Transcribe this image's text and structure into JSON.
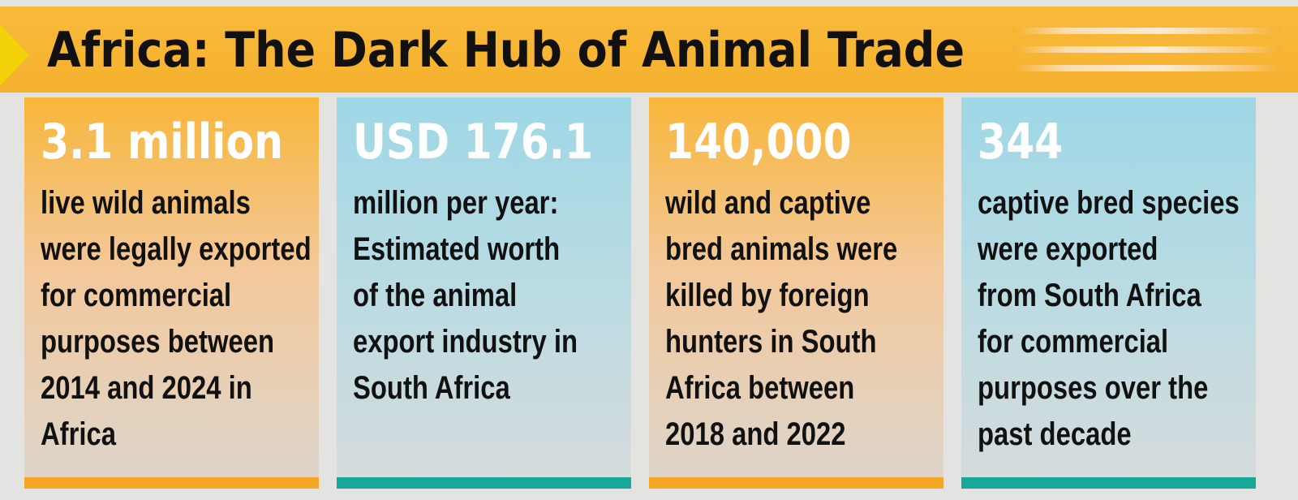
{
  "title": "Africa: The Dark Hub of Animal Trade",
  "colors": {
    "banner": "#f6b12e",
    "arrow": "#f2d20a",
    "card_orange": "#f8b63a",
    "card_blue": "#9ed7e6",
    "bar_orange": "#f5a623",
    "bar_teal": "#17a89a",
    "stat_text": "#ffffff",
    "body_text": "#111111"
  },
  "cards": [
    {
      "stat": "3.1 million",
      "lines": [
        "live wild animals",
        "were legally exported",
        "for commercial",
        "purposes between",
        "2014 and 2024 in",
        "Africa"
      ]
    },
    {
      "stat": "USD 176.1",
      "lines": [
        "million per year:",
        "Estimated worth",
        "of the animal",
        "export industry in",
        "South Africa"
      ]
    },
    {
      "stat": "140,000",
      "lines": [
        "wild and captive",
        "bred animals were",
        "killed by foreign",
        "hunters in South",
        "Africa between",
        "2018 and 2022"
      ]
    },
    {
      "stat": "344",
      "lines": [
        "captive bred species",
        "were exported",
        "from South Africa",
        "for commercial",
        "purposes over the",
        "past decade"
      ]
    }
  ]
}
